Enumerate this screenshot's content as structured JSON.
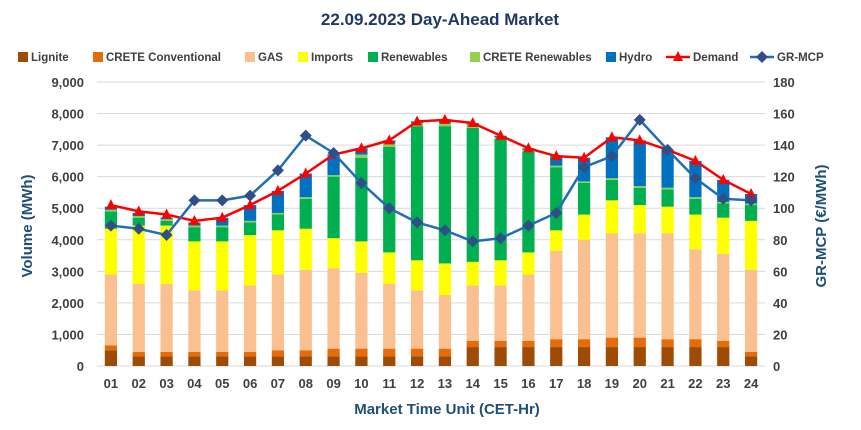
{
  "chart_data": {
    "type": "bar",
    "title": "22.09.2023  Day-Ahead Market",
    "xlabel": "Market Time Unit (CET-Hr)",
    "ylabel": "Volume (MWh)",
    "y2label": "GR-MCP (€/MWh)",
    "ylim": [
      0,
      9000
    ],
    "y2lim": [
      0,
      180
    ],
    "yticks": [
      "0",
      "1,000",
      "2,000",
      "3,000",
      "4,000",
      "5,000",
      "6,000",
      "7,000",
      "8,000",
      "9,000"
    ],
    "y2ticks": [
      "0",
      "20",
      "40",
      "60",
      "80",
      "100",
      "120",
      "140",
      "160",
      "180"
    ],
    "grid": true,
    "legend_position": "top",
    "categories": [
      "01",
      "02",
      "03",
      "04",
      "05",
      "06",
      "07",
      "08",
      "09",
      "10",
      "11",
      "12",
      "13",
      "14",
      "15",
      "16",
      "17",
      "18",
      "19",
      "20",
      "21",
      "22",
      "23",
      "24"
    ],
    "series": [
      {
        "name": "Lignite",
        "kind": "bar",
        "color": "#9E4B06",
        "values": [
          500,
          300,
          300,
          300,
          300,
          300,
          300,
          300,
          300,
          300,
          300,
          300,
          300,
          600,
          600,
          600,
          600,
          600,
          600,
          600,
          600,
          600,
          600,
          300
        ]
      },
      {
        "name": "CRETE Conventional",
        "kind": "bar",
        "color": "#E46C0A",
        "values": [
          150,
          150,
          150,
          150,
          150,
          150,
          200,
          200,
          250,
          250,
          250,
          250,
          250,
          200,
          200,
          200,
          250,
          250,
          300,
          300,
          250,
          250,
          200,
          150
        ]
      },
      {
        "name": "GAS",
        "kind": "bar",
        "color": "#FAC090",
        "values": [
          2250,
          2150,
          2150,
          1950,
          1950,
          2100,
          2400,
          2550,
          2550,
          2400,
          2050,
          1850,
          1700,
          1750,
          1750,
          2100,
          2800,
          3150,
          3300,
          3300,
          3350,
          2850,
          2750,
          2600
        ]
      },
      {
        "name": "Imports",
        "kind": "bar",
        "color": "#FFFF00",
        "values": [
          1450,
          1850,
          1850,
          1550,
          1550,
          1600,
          1400,
          1300,
          950,
          1000,
          1000,
          950,
          1000,
          750,
          800,
          700,
          650,
          800,
          1050,
          900,
          850,
          1100,
          1150,
          1550
        ]
      },
      {
        "name": "Renewables",
        "kind": "bar",
        "color": "#00B050",
        "values": [
          550,
          250,
          150,
          450,
          450,
          400,
          500,
          950,
          1950,
          2650,
          3350,
          4250,
          4350,
          4250,
          3850,
          3200,
          2000,
          1000,
          650,
          550,
          550,
          500,
          450,
          500
        ]
      },
      {
        "name": "CRETE Renewables",
        "kind": "bar",
        "color": "#92D050",
        "values": [
          50,
          50,
          50,
          50,
          50,
          50,
          50,
          50,
          50,
          100,
          100,
          100,
          100,
          100,
          50,
          50,
          50,
          50,
          50,
          50,
          50,
          50,
          50,
          50
        ]
      },
      {
        "name": "Hydro",
        "kind": "bar",
        "color": "#0070C0",
        "values": [
          100,
          100,
          50,
          100,
          250,
          500,
          700,
          750,
          650,
          200,
          100,
          50,
          100,
          50,
          50,
          50,
          300,
          750,
          1300,
          1450,
          1200,
          1150,
          700,
          300
        ]
      },
      {
        "name": "Demand",
        "kind": "line",
        "color": "#FF0000",
        "values": [
          5100,
          4900,
          4800,
          4600,
          4700,
          5100,
          5550,
          6100,
          6700,
          6900,
          7150,
          7750,
          7800,
          7700,
          7300,
          6900,
          6650,
          6600,
          7250,
          7150,
          6850,
          6500,
          5900,
          5450
        ]
      },
      {
        "name": "GR-MCP",
        "kind": "line-secondary",
        "color": "#1F6FB2",
        "marker_color": "#2F4F86",
        "values": [
          89,
          87,
          83,
          105,
          105,
          108,
          124,
          146,
          135,
          116,
          100,
          91,
          86,
          79,
          81,
          89,
          97,
          126,
          133,
          156,
          137,
          119,
          106,
          105
        ]
      }
    ]
  }
}
